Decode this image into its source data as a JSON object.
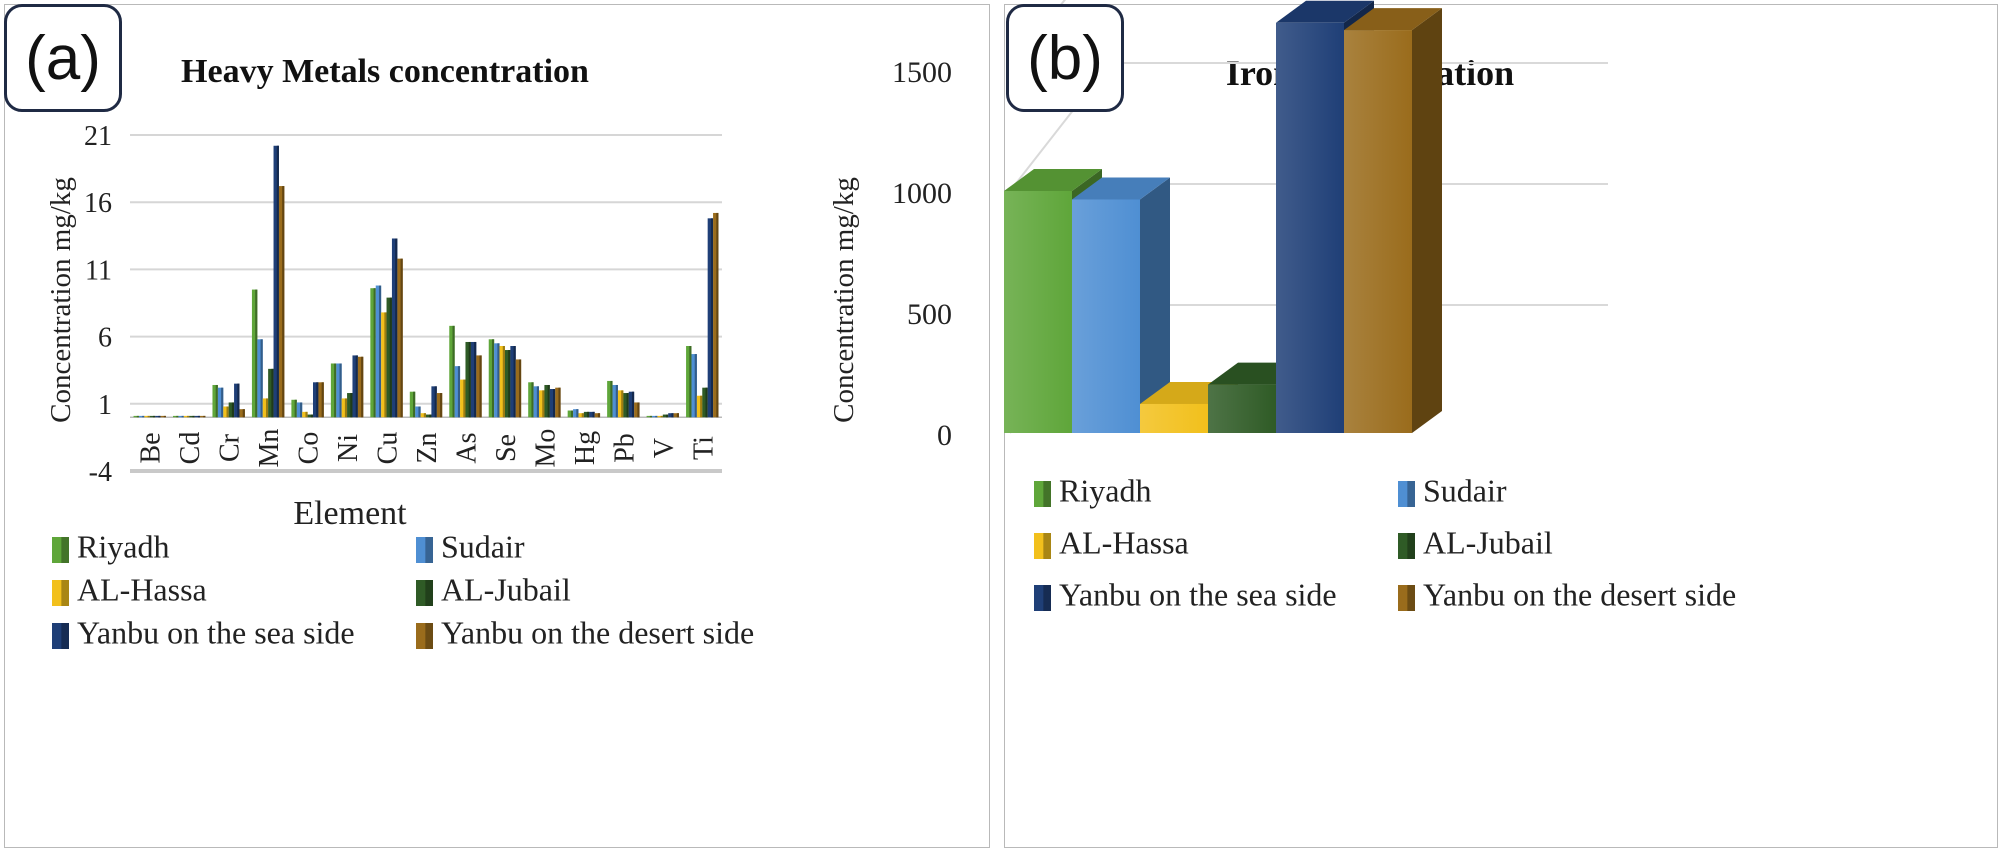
{
  "panel_a": {
    "tag": "(a)"
  },
  "panel_b": {
    "tag": "(b)"
  },
  "colors": {
    "Riyadh": "#5fa63a",
    "Sudair": "#4f8fd3",
    "AL-Hassa": "#f2c01c",
    "AL-Jubail": "#2f5b26",
    "Yanbu on the sea side": "#1f3f77",
    "Yanbu on the desert side": "#9a6c1c"
  },
  "chart_data": [
    {
      "type": "bar",
      "title": "Heavy Metals concentration",
      "xlabel": "Element",
      "ylabel": "Concentration  mg/kg",
      "ylim": [
        -4,
        21
      ],
      "yticks": [
        "-4",
        "1",
        "6",
        "11",
        "16",
        "21"
      ],
      "grid": true,
      "legend": "bottom",
      "categories": [
        "Be",
        "Cd",
        "Cr",
        "Mn",
        "Co",
        "Ni",
        "Cu",
        "Zn",
        "As",
        "Se",
        "Mo",
        "Hg",
        "Pb",
        "V",
        "Ti"
      ],
      "series": [
        {
          "name": "Riyadh",
          "values": [
            0.1,
            0.1,
            2.4,
            9.5,
            1.3,
            4.0,
            9.6,
            1.9,
            6.8,
            5.8,
            2.6,
            0.5,
            2.7,
            0.1,
            5.3
          ]
        },
        {
          "name": "Sudair",
          "values": [
            0.1,
            0.1,
            2.2,
            5.8,
            1.1,
            4.0,
            9.8,
            0.8,
            3.8,
            5.5,
            2.3,
            0.6,
            2.4,
            0.1,
            4.7
          ]
        },
        {
          "name": "AL-Hassa",
          "values": [
            0.1,
            0.1,
            0.8,
            1.4,
            0.4,
            1.4,
            7.8,
            0.3,
            2.8,
            5.3,
            2.0,
            0.3,
            2.0,
            0.1,
            1.6
          ]
        },
        {
          "name": "AL-Jubail",
          "values": [
            0.1,
            0.1,
            1.1,
            3.6,
            0.2,
            1.8,
            8.9,
            0.2,
            5.6,
            5.0,
            2.4,
            0.4,
            1.8,
            0.2,
            2.2
          ]
        },
        {
          "name": "Yanbu on the sea side",
          "values": [
            0.1,
            0.1,
            2.5,
            20.2,
            2.6,
            4.6,
            13.3,
            2.3,
            5.6,
            5.3,
            2.1,
            0.4,
            1.9,
            0.3,
            14.8
          ]
        },
        {
          "name": "Yanbu on the desert side",
          "values": [
            0.1,
            0.1,
            0.6,
            17.2,
            2.6,
            4.5,
            11.8,
            1.8,
            4.6,
            4.3,
            2.2,
            0.3,
            1.1,
            0.3,
            15.2
          ]
        }
      ]
    },
    {
      "type": "bar",
      "title": "Iron concentration",
      "xlabel": "",
      "ylabel": "Concentration  mg/kg",
      "ylim": [
        0,
        1500
      ],
      "yticks": [
        "0",
        "500",
        "1000",
        "1500"
      ],
      "grid": true,
      "legend": "bottom",
      "categories": [
        ""
      ],
      "series": [
        {
          "name": "Riyadh",
          "values": [
            1000
          ]
        },
        {
          "name": "Sudair",
          "values": [
            965
          ]
        },
        {
          "name": "AL-Hassa",
          "values": [
            120
          ]
        },
        {
          "name": "AL-Jubail",
          "values": [
            200
          ]
        },
        {
          "name": "Yanbu on the sea side",
          "values": [
            1695
          ]
        },
        {
          "name": "Yanbu on the desert side",
          "values": [
            1665
          ]
        }
      ]
    }
  ]
}
